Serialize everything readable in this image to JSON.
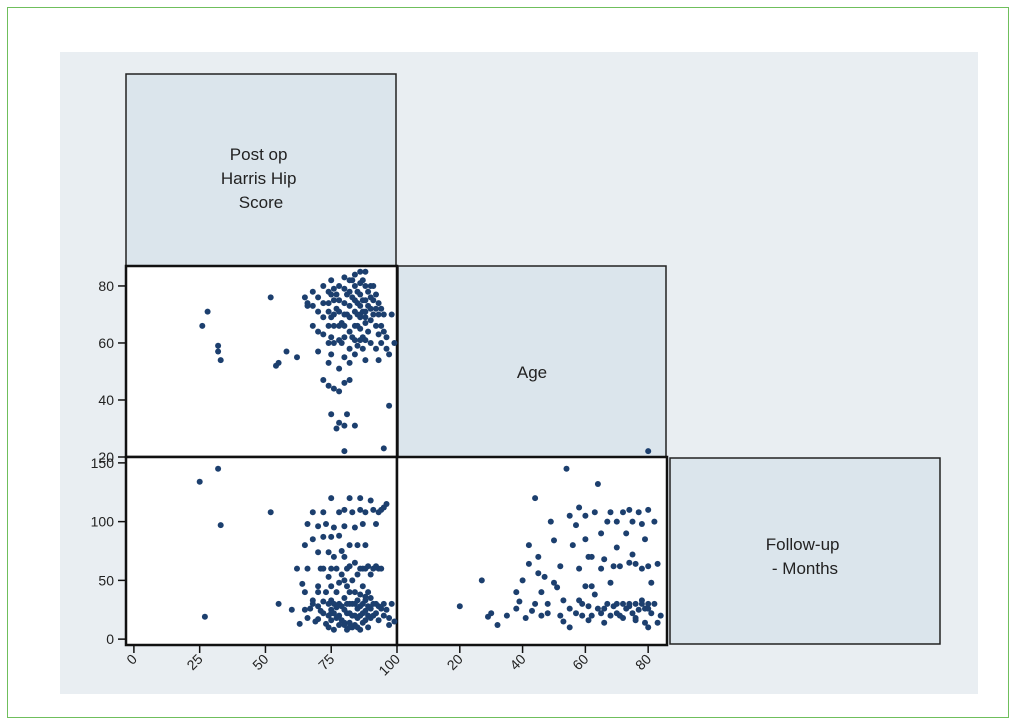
{
  "colors": {
    "panel_bg": "#e9eef2",
    "diag_fill": "#dbe5ec",
    "point": "#1c3f6e",
    "frame": "#6fbf5c"
  },
  "chart_data": {
    "type": "scatter",
    "variables": [
      {
        "name": "Post op Harris Hip Score",
        "label_lines": [
          "Post op",
          "Harris Hip",
          "Score"
        ]
      },
      {
        "name": "Age",
        "label_lines": [
          "Age"
        ]
      },
      {
        "name": "Follow-up - Months",
        "label_lines": [
          "Follow-up",
          "- Months"
        ]
      }
    ],
    "y_axes": {
      "age": {
        "ticks": [
          20,
          40,
          60,
          80
        ],
        "range": [
          20,
          87
        ]
      },
      "followup": {
        "ticks": [
          0,
          50,
          100,
          150
        ],
        "range": [
          -5,
          155
        ]
      }
    },
    "x_axes": {
      "hhs": {
        "ticks": [
          0,
          25,
          50,
          75,
          100
        ],
        "range": [
          -3,
          100
        ]
      },
      "age": {
        "ticks": [
          20,
          40,
          60,
          80
        ],
        "range": [
          0,
          86
        ]
      }
    },
    "panels": [
      {
        "name": "HHS vs Age",
        "x": [
          26,
          28,
          32,
          32,
          33,
          52,
          54,
          55,
          58,
          62,
          65,
          66,
          66,
          68,
          68,
          68,
          70,
          70,
          70,
          70,
          72,
          72,
          72,
          72,
          72,
          74,
          74,
          74,
          74,
          74,
          74,
          74,
          75,
          75,
          75,
          75,
          75,
          75,
          76,
          76,
          76,
          76,
          76,
          76,
          77,
          77,
          77,
          78,
          78,
          78,
          78,
          78,
          78,
          78,
          79,
          79,
          80,
          80,
          80,
          80,
          80,
          80,
          80,
          80,
          81,
          81,
          81,
          82,
          82,
          82,
          82,
          82,
          82,
          82,
          82,
          83,
          83,
          83,
          84,
          84,
          84,
          84,
          84,
          84,
          84,
          85,
          85,
          85,
          85,
          85,
          86,
          86,
          86,
          86,
          86,
          86,
          86,
          87,
          87,
          87,
          87,
          87,
          88,
          88,
          88,
          88,
          88,
          88,
          88,
          89,
          89,
          89,
          90,
          90,
          90,
          90,
          90,
          91,
          91,
          91,
          92,
          92,
          92,
          92,
          93,
          93,
          93,
          93,
          94,
          94,
          94,
          95,
          95,
          95,
          96,
          96,
          97,
          97,
          98,
          99,
          80,
          78,
          84,
          86,
          88
        ],
        "y": [
          66,
          71,
          57,
          59,
          54,
          76,
          52,
          53,
          57,
          55,
          76,
          74,
          73,
          78,
          73,
          66,
          76,
          71,
          64,
          57,
          80,
          74,
          69,
          63,
          47,
          78,
          74,
          71,
          66,
          60,
          53,
          45,
          82,
          77,
          69,
          62,
          56,
          35,
          79,
          75,
          70,
          66,
          60,
          44,
          77,
          72,
          30,
          80,
          75,
          71,
          66,
          61,
          51,
          43,
          67,
          60,
          83,
          79,
          74,
          70,
          66,
          62,
          55,
          46,
          77,
          70,
          35,
          82,
          78,
          73,
          69,
          64,
          58,
          53,
          47,
          82,
          76,
          62,
          84,
          80,
          75,
          71,
          66,
          61,
          56,
          78,
          74,
          70,
          66,
          59,
          85,
          81,
          77,
          73,
          69,
          65,
          61,
          82,
          75,
          71,
          62,
          58,
          85,
          80,
          75,
          71,
          67,
          61,
          54,
          78,
          73,
          64,
          80,
          76,
          72,
          68,
          60,
          80,
          75,
          70,
          77,
          72,
          66,
          58,
          74,
          70,
          63,
          54,
          72,
          66,
          60,
          70,
          64,
          23,
          62,
          58,
          56,
          38,
          70,
          60,
          31,
          32,
          31,
          70,
          69
        ]
      },
      {
        "name": "HHS vs Follow-up - Months",
        "x": [
          25,
          27,
          32,
          33,
          52,
          55,
          60,
          62,
          63,
          64,
          65,
          65,
          65,
          66,
          66,
          66,
          67,
          68,
          68,
          68,
          68,
          69,
          70,
          70,
          70,
          70,
          70,
          71,
          71,
          72,
          72,
          72,
          72,
          72,
          73,
          73,
          73,
          74,
          74,
          74,
          74,
          74,
          75,
          75,
          75,
          75,
          75,
          75,
          75,
          76,
          76,
          76,
          76,
          76,
          77,
          77,
          77,
          77,
          78,
          78,
          78,
          78,
          78,
          78,
          79,
          79,
          79,
          79,
          80,
          80,
          80,
          80,
          80,
          80,
          80,
          80,
          81,
          81,
          81,
          81,
          81,
          82,
          82,
          82,
          82,
          82,
          82,
          82,
          83,
          83,
          83,
          83,
          83,
          84,
          84,
          84,
          84,
          84,
          84,
          85,
          85,
          85,
          85,
          85,
          85,
          86,
          86,
          86,
          86,
          86,
          86,
          86,
          87,
          87,
          87,
          87,
          87,
          87,
          88,
          88,
          88,
          88,
          88,
          88,
          89,
          89,
          89,
          89,
          89,
          90,
          90,
          90,
          90,
          90,
          91,
          91,
          91,
          91,
          92,
          92,
          92,
          92,
          93,
          93,
          93,
          93,
          94,
          94,
          94,
          95,
          95,
          95,
          96,
          96,
          97,
          97,
          98,
          99,
          80,
          70,
          75,
          82,
          88
        ],
        "y": [
          134,
          19,
          145,
          97,
          108,
          30,
          25,
          60,
          13,
          47,
          80,
          40,
          25,
          98,
          60,
          18,
          26,
          33,
          108,
          85,
          30,
          15,
          96,
          74,
          45,
          28,
          17,
          60,
          24,
          108,
          87,
          60,
          32,
          22,
          98,
          40,
          13,
          74,
          53,
          30,
          20,
          10,
          120,
          87,
          60,
          45,
          33,
          25,
          16,
          95,
          70,
          30,
          22,
          8,
          60,
          40,
          27,
          18,
          108,
          88,
          48,
          30,
          20,
          12,
          75,
          55,
          28,
          16,
          160,
          110,
          96,
          70,
          50,
          35,
          25,
          14,
          60,
          45,
          30,
          22,
          8,
          120,
          80,
          62,
          40,
          30,
          22,
          14,
          108,
          50,
          30,
          20,
          10,
          95,
          65,
          40,
          30,
          20,
          12,
          80,
          55,
          33,
          26,
          18,
          10,
          120,
          110,
          60,
          38,
          28,
          20,
          8,
          98,
          60,
          45,
          30,
          22,
          14,
          108,
          80,
          60,
          33,
          24,
          16,
          62,
          40,
          28,
          20,
          10,
          118,
          55,
          35,
          26,
          18,
          110,
          60,
          30,
          20,
          98,
          62,
          30,
          22,
          108,
          60,
          28,
          16,
          110,
          60,
          26,
          112,
          30,
          20,
          115,
          25,
          18,
          12,
          30,
          15,
          12,
          40,
          22,
          10,
          36
        ]
      },
      {
        "name": "Age vs Follow-up - Months",
        "x": [
          20,
          27,
          29,
          32,
          35,
          38,
          39,
          40,
          41,
          42,
          43,
          44,
          44,
          45,
          46,
          46,
          47,
          48,
          48,
          49,
          50,
          51,
          52,
          52,
          53,
          53,
          54,
          55,
          55,
          56,
          57,
          57,
          58,
          58,
          59,
          59,
          60,
          60,
          60,
          61,
          61,
          62,
          62,
          63,
          63,
          64,
          64,
          65,
          65,
          65,
          66,
          66,
          67,
          67,
          68,
          68,
          68,
          69,
          69,
          70,
          70,
          70,
          71,
          71,
          72,
          72,
          72,
          73,
          73,
          74,
          74,
          74,
          75,
          75,
          75,
          76,
          76,
          76,
          77,
          77,
          78,
          78,
          78,
          79,
          79,
          79,
          80,
          80,
          80,
          80,
          81,
          81,
          82,
          82,
          83,
          83,
          84,
          80,
          78,
          76,
          70,
          62,
          55,
          45,
          38,
          30,
          66,
          58,
          50,
          42,
          80,
          74,
          61
        ],
        "y": [
          28,
          50,
          19,
          12,
          20,
          26,
          32,
          50,
          18,
          64,
          24,
          120,
          30,
          70,
          40,
          20,
          53,
          22,
          30,
          100,
          84,
          44,
          62,
          20,
          33,
          15,
          145,
          105,
          26,
          80,
          22,
          97,
          112,
          60,
          20,
          30,
          105,
          85,
          45,
          16,
          28,
          70,
          20,
          108,
          38,
          26,
          132,
          90,
          60,
          22,
          26,
          14,
          100,
          30,
          108,
          48,
          20,
          62,
          28,
          100,
          78,
          30,
          62,
          20,
          108,
          30,
          18,
          90,
          26,
          110,
          65,
          28,
          100,
          72,
          22,
          64,
          30,
          18,
          108,
          25,
          98,
          60,
          30,
          85,
          26,
          14,
          160,
          110,
          62,
          30,
          48,
          22,
          100,
          30,
          64,
          14,
          20,
          10,
          33,
          16,
          22,
          45,
          10,
          56,
          40,
          22,
          68,
          33,
          48,
          80,
          26,
          30,
          70
        ]
      }
    ]
  }
}
